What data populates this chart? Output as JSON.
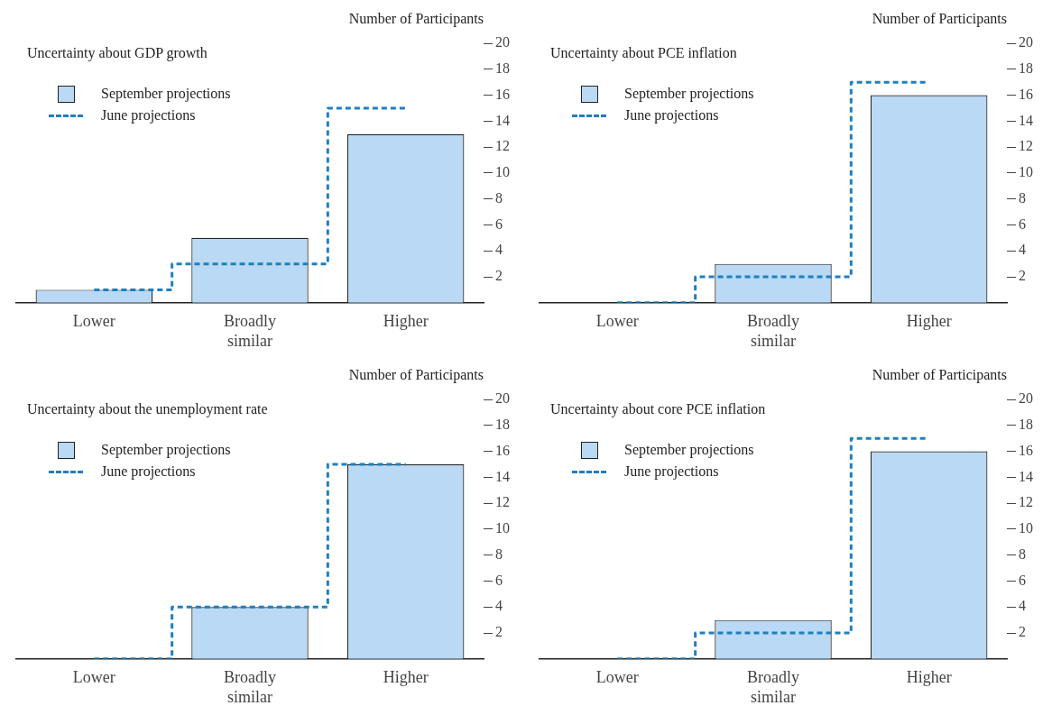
{
  "chart_data": [
    {
      "type": "bar",
      "title": "Uncertainty about GDP growth",
      "ylabel": "Number of Participants",
      "categories": [
        "Lower",
        "Broadly similar",
        "Higher"
      ],
      "ylim": [
        0,
        20
      ],
      "yticks": [
        2,
        4,
        6,
        8,
        10,
        12,
        14,
        16,
        18,
        20
      ],
      "legend": "top left",
      "series": [
        {
          "name": "September projections",
          "color": "#b9d9f4",
          "values": [
            1,
            5,
            13
          ]
        },
        {
          "name": "June projections",
          "type": "step",
          "line_style": "dashed",
          "color": "#1f7fbf",
          "values": [
            1,
            3,
            15
          ]
        }
      ]
    },
    {
      "type": "bar",
      "title": "Uncertainty about PCE inflation",
      "ylabel": "Number of Participants",
      "categories": [
        "Lower",
        "Broadly similar",
        "Higher"
      ],
      "ylim": [
        0,
        20
      ],
      "yticks": [
        2,
        4,
        6,
        8,
        10,
        12,
        14,
        16,
        18,
        20
      ],
      "legend": "top left",
      "series": [
        {
          "name": "September projections",
          "color": "#b9d9f4",
          "values": [
            0,
            3,
            16
          ]
        },
        {
          "name": "June projections",
          "type": "step",
          "line_style": "dashed",
          "color": "#1f7fbf",
          "values": [
            0,
            2,
            17
          ]
        }
      ]
    },
    {
      "type": "bar",
      "title": "Uncertainty about the unemployment rate",
      "ylabel": "Number of Participants",
      "categories": [
        "Lower",
        "Broadly similar",
        "Higher"
      ],
      "ylim": [
        0,
        20
      ],
      "yticks": [
        2,
        4,
        6,
        8,
        10,
        12,
        14,
        16,
        18,
        20
      ],
      "legend": "top left",
      "series": [
        {
          "name": "September projections",
          "color": "#b9d9f4",
          "values": [
            0,
            4,
            15
          ]
        },
        {
          "name": "June projections",
          "type": "step",
          "line_style": "dashed",
          "color": "#1f7fbf",
          "values": [
            0,
            4,
            15
          ]
        }
      ]
    },
    {
      "type": "bar",
      "title": "Uncertainty about core PCE inflation",
      "ylabel": "Number of Participants",
      "categories": [
        "Lower",
        "Broadly similar",
        "Higher"
      ],
      "ylim": [
        0,
        20
      ],
      "yticks": [
        2,
        4,
        6,
        8,
        10,
        12,
        14,
        16,
        18,
        20
      ],
      "legend": "top left",
      "series": [
        {
          "name": "September projections",
          "color": "#b9d9f4",
          "values": [
            0,
            3,
            16
          ]
        },
        {
          "name": "June projections",
          "type": "step",
          "line_style": "dashed",
          "color": "#1f7fbf",
          "values": [
            0,
            2,
            17
          ]
        }
      ]
    }
  ]
}
